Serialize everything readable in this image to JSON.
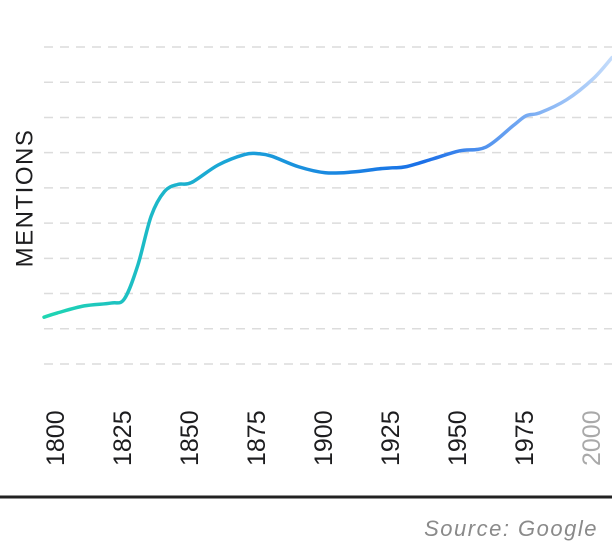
{
  "chart_data": {
    "type": "line",
    "y_label": "MENTIONS",
    "source": "Source: Google",
    "xlim": [
      1795,
      2007
    ],
    "xticks": [
      1800,
      1825,
      1850,
      1875,
      1900,
      1925,
      1950,
      1975,
      2000
    ],
    "ylim": [
      0,
      9
    ],
    "yticks": [
      0,
      1,
      2,
      3,
      4,
      5,
      6,
      7,
      8,
      9
    ],
    "grid": true,
    "series": [
      {
        "color": [
          "#1fd6b2",
          "#1aa3d8",
          "#1a6fe8",
          "#c4dcfb"
        ],
        "x": [
          1795,
          1800,
          1810,
          1820,
          1825,
          1830,
          1835,
          1840,
          1845,
          1850,
          1860,
          1870,
          1875,
          1880,
          1890,
          1900,
          1910,
          1920,
          1925,
          1930,
          1940,
          1950,
          1960,
          1970,
          1975,
          1980,
          1990,
          2000,
          2007
        ],
        "values": [
          1.33,
          1.45,
          1.65,
          1.73,
          1.85,
          2.8,
          4.2,
          4.9,
          5.1,
          5.15,
          5.65,
          5.95,
          5.97,
          5.9,
          5.6,
          5.43,
          5.45,
          5.54,
          5.57,
          5.6,
          5.82,
          6.05,
          6.16,
          6.76,
          7.05,
          7.13,
          7.5,
          8.1,
          8.7
        ]
      }
    ]
  }
}
